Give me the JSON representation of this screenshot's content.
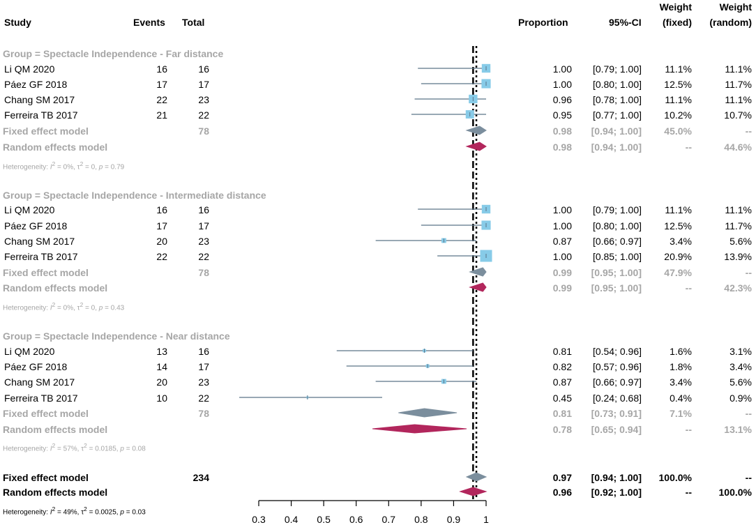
{
  "header": {
    "study": "Study",
    "events": "Events",
    "total": "Total",
    "proportion": "Proportion",
    "ci": "95%-CI",
    "weight_fixed_1": "Weight",
    "weight_fixed_2": "(fixed)",
    "weight_random_1": "Weight",
    "weight_random_2": "(random)"
  },
  "groups": [
    {
      "title": "Group = Spectacle Independence - Far distance",
      "studies": [
        {
          "name": "Li QM 2020",
          "events": "16",
          "total": "16",
          "prop": "1.00",
          "ci": "[0.79; 1.00]",
          "wf": "11.1%",
          "wr": "11.1%"
        },
        {
          "name": "Páez GF 2018",
          "events": "17",
          "total": "17",
          "prop": "1.00",
          "ci": "[0.80; 1.00]",
          "wf": "12.5%",
          "wr": "11.7%"
        },
        {
          "name": "Chang SM 2017",
          "events": "22",
          "total": "23",
          "prop": "0.96",
          "ci": "[0.78; 1.00]",
          "wf": "11.1%",
          "wr": "11.1%"
        },
        {
          "name": "Ferreira TB 2017",
          "events": "21",
          "total": "22",
          "prop": "0.95",
          "ci": "[0.77; 1.00]",
          "wf": "10.2%",
          "wr": "10.7%"
        }
      ],
      "fixed": {
        "label": "Fixed effect model",
        "total": "78",
        "prop": "0.98",
        "ci": "[0.94; 1.00]",
        "wf": "45.0%",
        "wr": "--"
      },
      "random": {
        "label": "Random effects model",
        "prop": "0.98",
        "ci": "[0.94; 1.00]",
        "wf": "--",
        "wr": "44.6%"
      },
      "het": {
        "prefix": "Heterogeneity: ",
        "i2": "I",
        "i2_sup": "2",
        "i2_val": " = 0%, ",
        "tau": "τ",
        "tau_sup": "2",
        "tau_val": " = 0, ",
        "p": "p",
        "p_val": " = 0.79"
      }
    },
    {
      "title": "Group = Spectacle Independence - Intermediate distance",
      "studies": [
        {
          "name": "Li QM 2020",
          "events": "16",
          "total": "16",
          "prop": "1.00",
          "ci": "[0.79; 1.00]",
          "wf": "11.1%",
          "wr": "11.1%"
        },
        {
          "name": "Páez GF 2018",
          "events": "17",
          "total": "17",
          "prop": "1.00",
          "ci": "[0.80; 1.00]",
          "wf": "12.5%",
          "wr": "11.7%"
        },
        {
          "name": "Chang SM 2017",
          "events": "20",
          "total": "23",
          "prop": "0.87",
          "ci": "[0.66; 0.97]",
          "wf": "3.4%",
          "wr": "5.6%"
        },
        {
          "name": "Ferreira TB 2017",
          "events": "22",
          "total": "22",
          "prop": "1.00",
          "ci": "[0.85; 1.00]",
          "wf": "20.9%",
          "wr": "13.9%"
        }
      ],
      "fixed": {
        "label": "Fixed effect model",
        "total": "78",
        "prop": "0.99",
        "ci": "[0.95; 1.00]",
        "wf": "47.9%",
        "wr": "--"
      },
      "random": {
        "label": "Random effects model",
        "prop": "0.99",
        "ci": "[0.95; 1.00]",
        "wf": "--",
        "wr": "42.3%"
      },
      "het": {
        "prefix": "Heterogeneity: ",
        "i2": "I",
        "i2_sup": "2",
        "i2_val": " = 0%, ",
        "tau": "τ",
        "tau_sup": "2",
        "tau_val": " = 0, ",
        "p": "p",
        "p_val": " = 0.43"
      }
    },
    {
      "title": "Group = Spectacle Independence - Near distance",
      "studies": [
        {
          "name": "Li QM 2020",
          "events": "13",
          "total": "16",
          "prop": "0.81",
          "ci": "[0.54; 0.96]",
          "wf": "1.6%",
          "wr": "3.1%"
        },
        {
          "name": "Páez GF 2018",
          "events": "14",
          "total": "17",
          "prop": "0.82",
          "ci": "[0.57; 0.96]",
          "wf": "1.8%",
          "wr": "3.4%"
        },
        {
          "name": "Chang SM 2017",
          "events": "20",
          "total": "23",
          "prop": "0.87",
          "ci": "[0.66; 0.97]",
          "wf": "3.4%",
          "wr": "5.6%"
        },
        {
          "name": "Ferreira TB 2017",
          "events": "10",
          "total": "22",
          "prop": "0.45",
          "ci": "[0.24; 0.68]",
          "wf": "0.4%",
          "wr": "0.9%"
        }
      ],
      "fixed": {
        "label": "Fixed effect model",
        "total": "78",
        "prop": "0.81",
        "ci": "[0.73; 0.91]",
        "wf": "7.1%",
        "wr": "--"
      },
      "random": {
        "label": "Random effects model",
        "prop": "0.78",
        "ci": "[0.65; 0.94]",
        "wf": "--",
        "wr": "13.1%"
      },
      "het": {
        "prefix": "Heterogeneity: ",
        "i2": "I",
        "i2_sup": "2",
        "i2_val": " = 57%, ",
        "tau": "τ",
        "tau_sup": "2",
        "tau_val": " = 0.0185, ",
        "p": "p",
        "p_val": " = 0.08"
      }
    }
  ],
  "overall": {
    "fixed": {
      "label": "Fixed effect model",
      "total": "234",
      "prop": "0.97",
      "ci": "[0.94; 1.00]",
      "wf": "100.0%",
      "wr": "--"
    },
    "random": {
      "label": "Random effects model",
      "prop": "0.96",
      "ci": "[0.92; 1.00]",
      "wf": "--",
      "wr": "100.0%"
    },
    "het": {
      "prefix": "Heterogeneity: ",
      "i2": "I",
      "i2_sup": "2",
      "i2_val": " = 49%, ",
      "tau": "τ",
      "tau_sup": "2",
      "tau_val": " = 0.0025, ",
      "p": "p",
      "p_val": " = 0.03"
    }
  },
  "colors": {
    "square": "#87cbe8",
    "ci_line": "#5a7387",
    "fixed_diamond": "#7b8e9d",
    "random_diamond": "#b2265c",
    "group_text": "#a6a6a6"
  },
  "chart_data": {
    "type": "forest",
    "xlim": [
      0.3,
      1.0
    ],
    "xticks": [
      "0.3",
      "0.4",
      "0.5",
      "0.6",
      "0.7",
      "0.8",
      "0.9",
      "1"
    ],
    "reference_fixed": 0.97,
    "reference_random": 0.96,
    "groups": [
      {
        "studies": [
          {
            "est": 1.0,
            "lo": 0.79,
            "hi": 1.0,
            "w": 11.1
          },
          {
            "est": 1.0,
            "lo": 0.8,
            "hi": 1.0,
            "w": 12.5
          },
          {
            "est": 0.96,
            "lo": 0.78,
            "hi": 1.0,
            "w": 11.1
          },
          {
            "est": 0.95,
            "lo": 0.77,
            "hi": 1.0,
            "w": 10.2
          }
        ],
        "fixed": {
          "est": 0.98,
          "lo": 0.94,
          "hi": 1.0
        },
        "random": {
          "est": 0.98,
          "lo": 0.94,
          "hi": 1.0
        }
      },
      {
        "studies": [
          {
            "est": 1.0,
            "lo": 0.79,
            "hi": 1.0,
            "w": 11.1
          },
          {
            "est": 1.0,
            "lo": 0.8,
            "hi": 1.0,
            "w": 12.5
          },
          {
            "est": 0.87,
            "lo": 0.66,
            "hi": 0.97,
            "w": 3.4
          },
          {
            "est": 1.0,
            "lo": 0.85,
            "hi": 1.0,
            "w": 20.9
          }
        ],
        "fixed": {
          "est": 0.99,
          "lo": 0.95,
          "hi": 1.0
        },
        "random": {
          "est": 0.99,
          "lo": 0.95,
          "hi": 1.0
        }
      },
      {
        "studies": [
          {
            "est": 0.81,
            "lo": 0.54,
            "hi": 0.96,
            "w": 1.6
          },
          {
            "est": 0.82,
            "lo": 0.57,
            "hi": 0.96,
            "w": 1.8
          },
          {
            "est": 0.87,
            "lo": 0.66,
            "hi": 0.97,
            "w": 3.4
          },
          {
            "est": 0.45,
            "lo": 0.24,
            "hi": 0.68,
            "w": 0.4
          }
        ],
        "fixed": {
          "est": 0.81,
          "lo": 0.73,
          "hi": 0.91
        },
        "random": {
          "est": 0.78,
          "lo": 0.65,
          "hi": 0.94
        }
      }
    ],
    "overall": {
      "fixed": {
        "est": 0.97,
        "lo": 0.94,
        "hi": 1.0
      },
      "random": {
        "est": 0.96,
        "lo": 0.92,
        "hi": 1.0
      }
    }
  }
}
